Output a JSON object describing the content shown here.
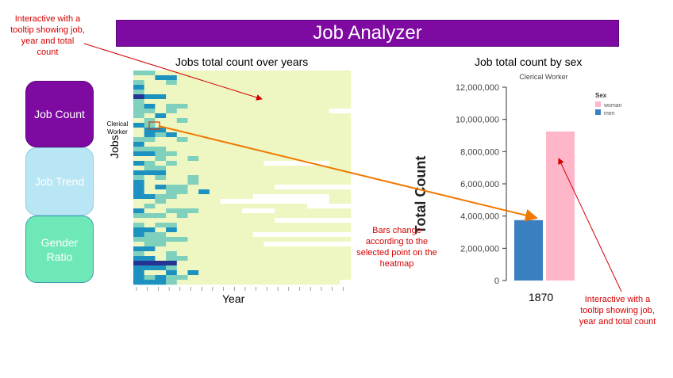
{
  "app": {
    "title": "Job Analyzer"
  },
  "nav": {
    "job_count": "Job Count",
    "job_trend": "Job Trend",
    "gender_ratio": "Gender Ratio"
  },
  "heatmap": {
    "title": "Jobs total count over years",
    "x_label": "Year",
    "y_label": "Jobs",
    "selected_label": "Clerical Worker",
    "colors": {
      "low": "#eef7c2",
      "mid": "#7fd0bc",
      "high": "#1d91c0",
      "max": "#253494",
      "empty": "#ffffff"
    }
  },
  "barchart": {
    "title": "Job total count by sex",
    "chart_subtitle": "Clerical Worker",
    "ylabel": "Total Count",
    "category_label": "1870",
    "legend_title": "Sex",
    "legend": [
      {
        "label": "woman",
        "color": "#ffb6c8"
      },
      {
        "label": "men",
        "color": "#3a7fc0"
      }
    ]
  },
  "chart_data": {
    "type": "bar",
    "title": "Clerical Worker",
    "categories": [
      "1870"
    ],
    "series": [
      {
        "name": "men",
        "values": [
          3750000
        ],
        "color": "#3a7fc0"
      },
      {
        "name": "woman",
        "values": [
          9250000
        ],
        "color": "#ffb6c8"
      }
    ],
    "ylabel": "Total Count",
    "ylim": [
      0,
      12000000
    ],
    "yticks": [
      "0",
      "2,000,000",
      "4,000,000",
      "6,000,000",
      "8,000,000",
      "10,000,000",
      "12,000,000"
    ],
    "legend_position": "top-right"
  },
  "annotations": {
    "top_left": "Interactive with a tooltip showing job, year and total count",
    "middle": "Bars change according to the selected point on the heatmap",
    "bottom_right": "Interactive with a tooltip showing job, year and total count"
  }
}
